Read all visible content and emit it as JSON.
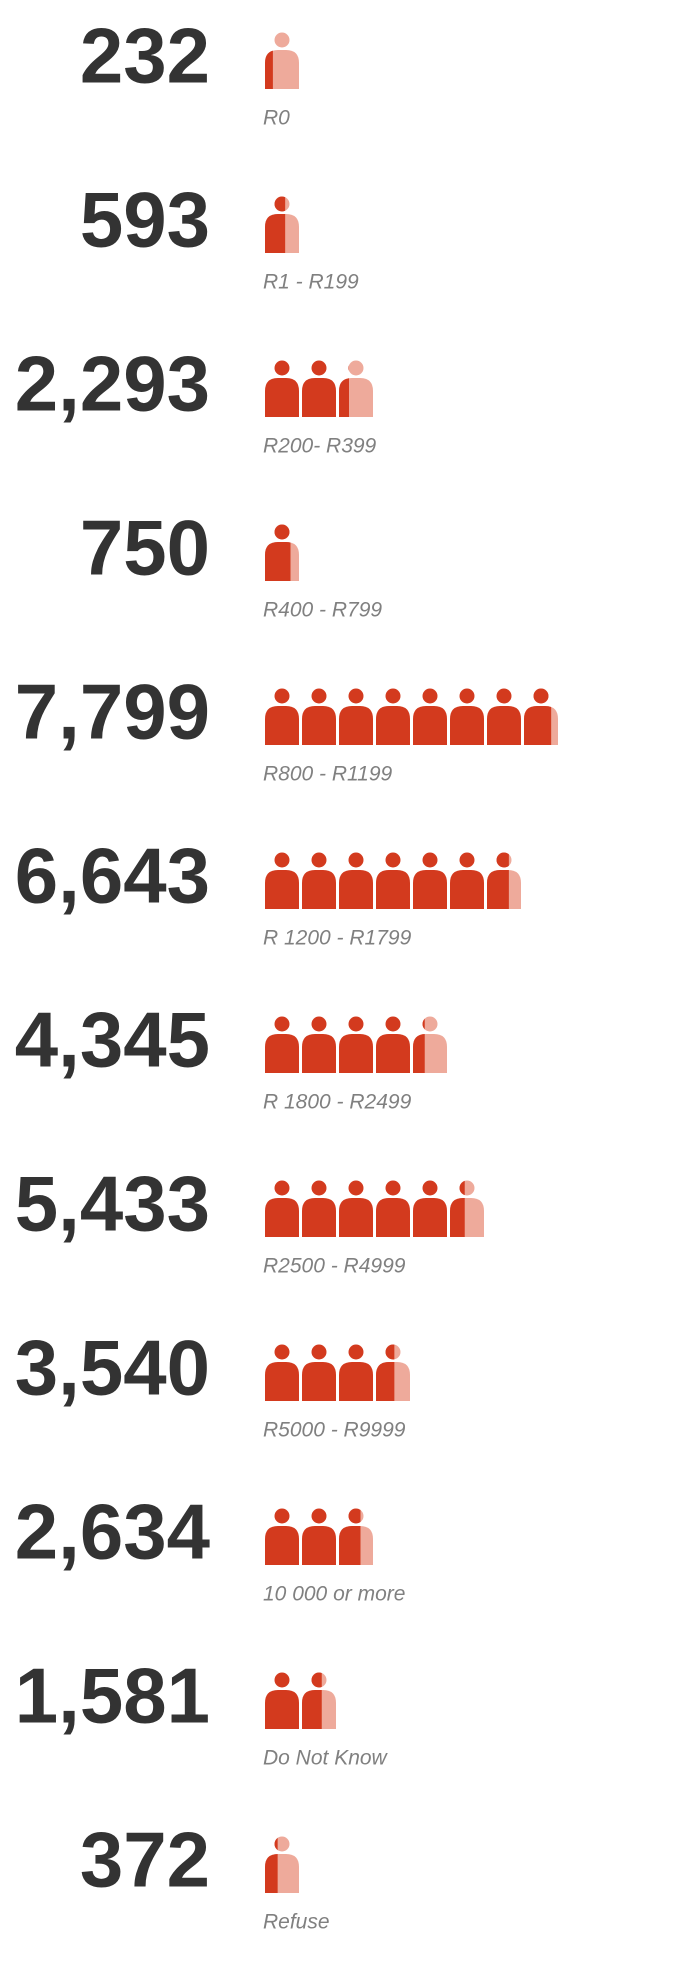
{
  "chart_data": {
    "type": "pictograph",
    "categories": [
      "R0",
      "R1 - R199",
      "R200- R399",
      "R400 - R799",
      "R800 - R1199",
      "R 1200 - R1799",
      "R 1800 - R2499",
      "R2500 - R4999",
      "R5000 - R9999",
      "10 000 or more",
      "Do Not Know",
      "Refuse"
    ],
    "values": [
      232,
      593,
      2293,
      750,
      7799,
      6643,
      4345,
      5433,
      3540,
      2634,
      1581,
      372
    ],
    "value_labels": [
      "232",
      "593",
      "2,293",
      "750",
      "7,799",
      "6,643",
      "4,345",
      "5,433",
      "3,540",
      "2,634",
      "1,581",
      "372"
    ],
    "unit": 1000,
    "color": "#d33a1e",
    "light_color": "#eeaa9b"
  }
}
